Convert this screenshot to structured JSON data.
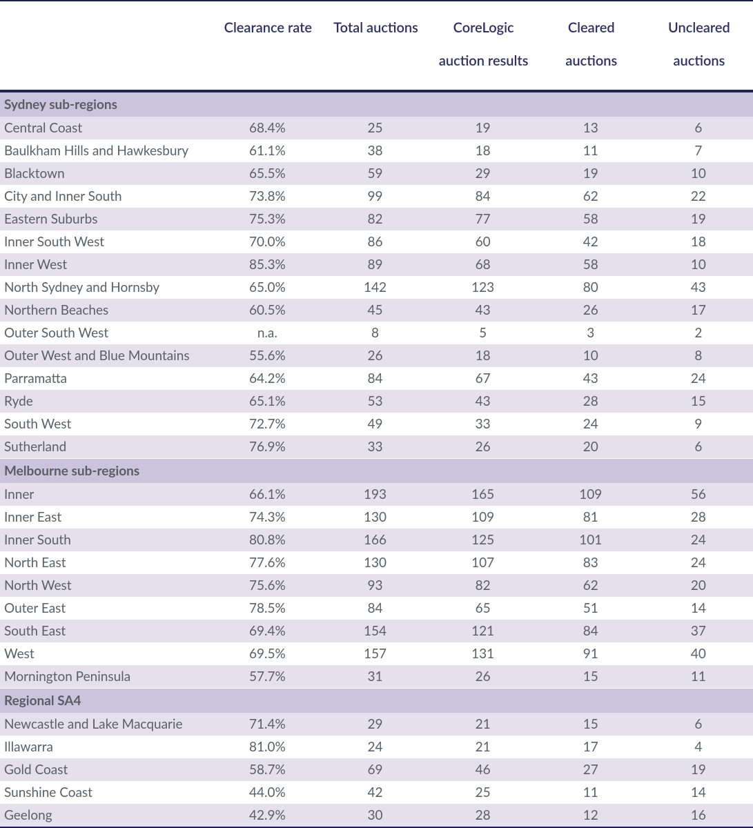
{
  "columns": [
    "",
    "Clearance rate",
    "Total auctions",
    "CoreLogic auction results",
    "Cleared auctions",
    "Uncleared auctions"
  ],
  "sections": [
    {
      "title": "Sydney sub-regions",
      "rows": [
        {
          "region": "Central Coast",
          "clearance": "68.4%",
          "total": "25",
          "results": "19",
          "cleared": "13",
          "uncleared": "6"
        },
        {
          "region": "Baulkham Hills and Hawkesbury",
          "clearance": "61.1%",
          "total": "38",
          "results": "18",
          "cleared": "11",
          "uncleared": "7"
        },
        {
          "region": "Blacktown",
          "clearance": "65.5%",
          "total": "59",
          "results": "29",
          "cleared": "19",
          "uncleared": "10"
        },
        {
          "region": "City and Inner South",
          "clearance": "73.8%",
          "total": "99",
          "results": "84",
          "cleared": "62",
          "uncleared": "22"
        },
        {
          "region": "Eastern Suburbs",
          "clearance": "75.3%",
          "total": "82",
          "results": "77",
          "cleared": "58",
          "uncleared": "19"
        },
        {
          "region": "Inner South West",
          "clearance": "70.0%",
          "total": "86",
          "results": "60",
          "cleared": "42",
          "uncleared": "18"
        },
        {
          "region": "Inner West",
          "clearance": "85.3%",
          "total": "89",
          "results": "68",
          "cleared": "58",
          "uncleared": "10"
        },
        {
          "region": "North Sydney and Hornsby",
          "clearance": "65.0%",
          "total": "142",
          "results": "123",
          "cleared": "80",
          "uncleared": "43"
        },
        {
          "region": "Northern Beaches",
          "clearance": "60.5%",
          "total": "45",
          "results": "43",
          "cleared": "26",
          "uncleared": "17"
        },
        {
          "region": "Outer South West",
          "clearance": "n.a.",
          "total": "8",
          "results": "5",
          "cleared": "3",
          "uncleared": "2"
        },
        {
          "region": "Outer West and Blue Mountains",
          "clearance": "55.6%",
          "total": "26",
          "results": "18",
          "cleared": "10",
          "uncleared": "8"
        },
        {
          "region": "Parramatta",
          "clearance": "64.2%",
          "total": "84",
          "results": "67",
          "cleared": "43",
          "uncleared": "24"
        },
        {
          "region": "Ryde",
          "clearance": "65.1%",
          "total": "53",
          "results": "43",
          "cleared": "28",
          "uncleared": "15"
        },
        {
          "region": "South West",
          "clearance": "72.7%",
          "total": "49",
          "results": "33",
          "cleared": "24",
          "uncleared": "9"
        },
        {
          "region": "Sutherland",
          "clearance": "76.9%",
          "total": "33",
          "results": "26",
          "cleared": "20",
          "uncleared": "6"
        }
      ]
    },
    {
      "title": "Melbourne sub-regions",
      "rows": [
        {
          "region": "Inner",
          "clearance": "66.1%",
          "total": "193",
          "results": "165",
          "cleared": "109",
          "uncleared": "56"
        },
        {
          "region": "Inner East",
          "clearance": "74.3%",
          "total": "130",
          "results": "109",
          "cleared": "81",
          "uncleared": "28"
        },
        {
          "region": "Inner South",
          "clearance": "80.8%",
          "total": "166",
          "results": "125",
          "cleared": "101",
          "uncleared": "24"
        },
        {
          "region": "North East",
          "clearance": "77.6%",
          "total": "130",
          "results": "107",
          "cleared": "83",
          "uncleared": "24"
        },
        {
          "region": "North West",
          "clearance": "75.6%",
          "total": "93",
          "results": "82",
          "cleared": "62",
          "uncleared": "20"
        },
        {
          "region": "Outer East",
          "clearance": "78.5%",
          "total": "84",
          "results": "65",
          "cleared": "51",
          "uncleared": "14"
        },
        {
          "region": "South East",
          "clearance": "69.4%",
          "total": "154",
          "results": "121",
          "cleared": "84",
          "uncleared": "37"
        },
        {
          "region": "West",
          "clearance": "69.5%",
          "total": "157",
          "results": "131",
          "cleared": "91",
          "uncleared": "40"
        },
        {
          "region": "Mornington Peninsula",
          "clearance": "57.7%",
          "total": "31",
          "results": "26",
          "cleared": "15",
          "uncleared": "11"
        }
      ]
    },
    {
      "title": "Regional SA4",
      "rows": [
        {
          "region": "Newcastle and Lake Macquarie",
          "clearance": "71.4%",
          "total": "29",
          "results": "21",
          "cleared": "15",
          "uncleared": "6"
        },
        {
          "region": "Illawarra",
          "clearance": "81.0%",
          "total": "24",
          "results": "21",
          "cleared": "17",
          "uncleared": "4"
        },
        {
          "region": "Gold Coast",
          "clearance": "58.7%",
          "total": "69",
          "results": "46",
          "cleared": "27",
          "uncleared": "19"
        },
        {
          "region": "Sunshine Coast",
          "clearance": "44.0%",
          "total": "42",
          "results": "25",
          "cleared": "11",
          "uncleared": "14"
        },
        {
          "region": "Geelong",
          "clearance": "42.9%",
          "total": "30",
          "results": "28",
          "cleared": "12",
          "uncleared": "16"
        }
      ]
    }
  ],
  "style": {
    "header_color": "#2f2e6b",
    "header_fontsize": 20,
    "body_fontsize": 19,
    "row_odd_bg": "#e4e1ed",
    "row_even_bg": "#ffffff",
    "section_bg": "#cac5dc",
    "text_color": "#5b5f66",
    "border_color": "#202054"
  }
}
